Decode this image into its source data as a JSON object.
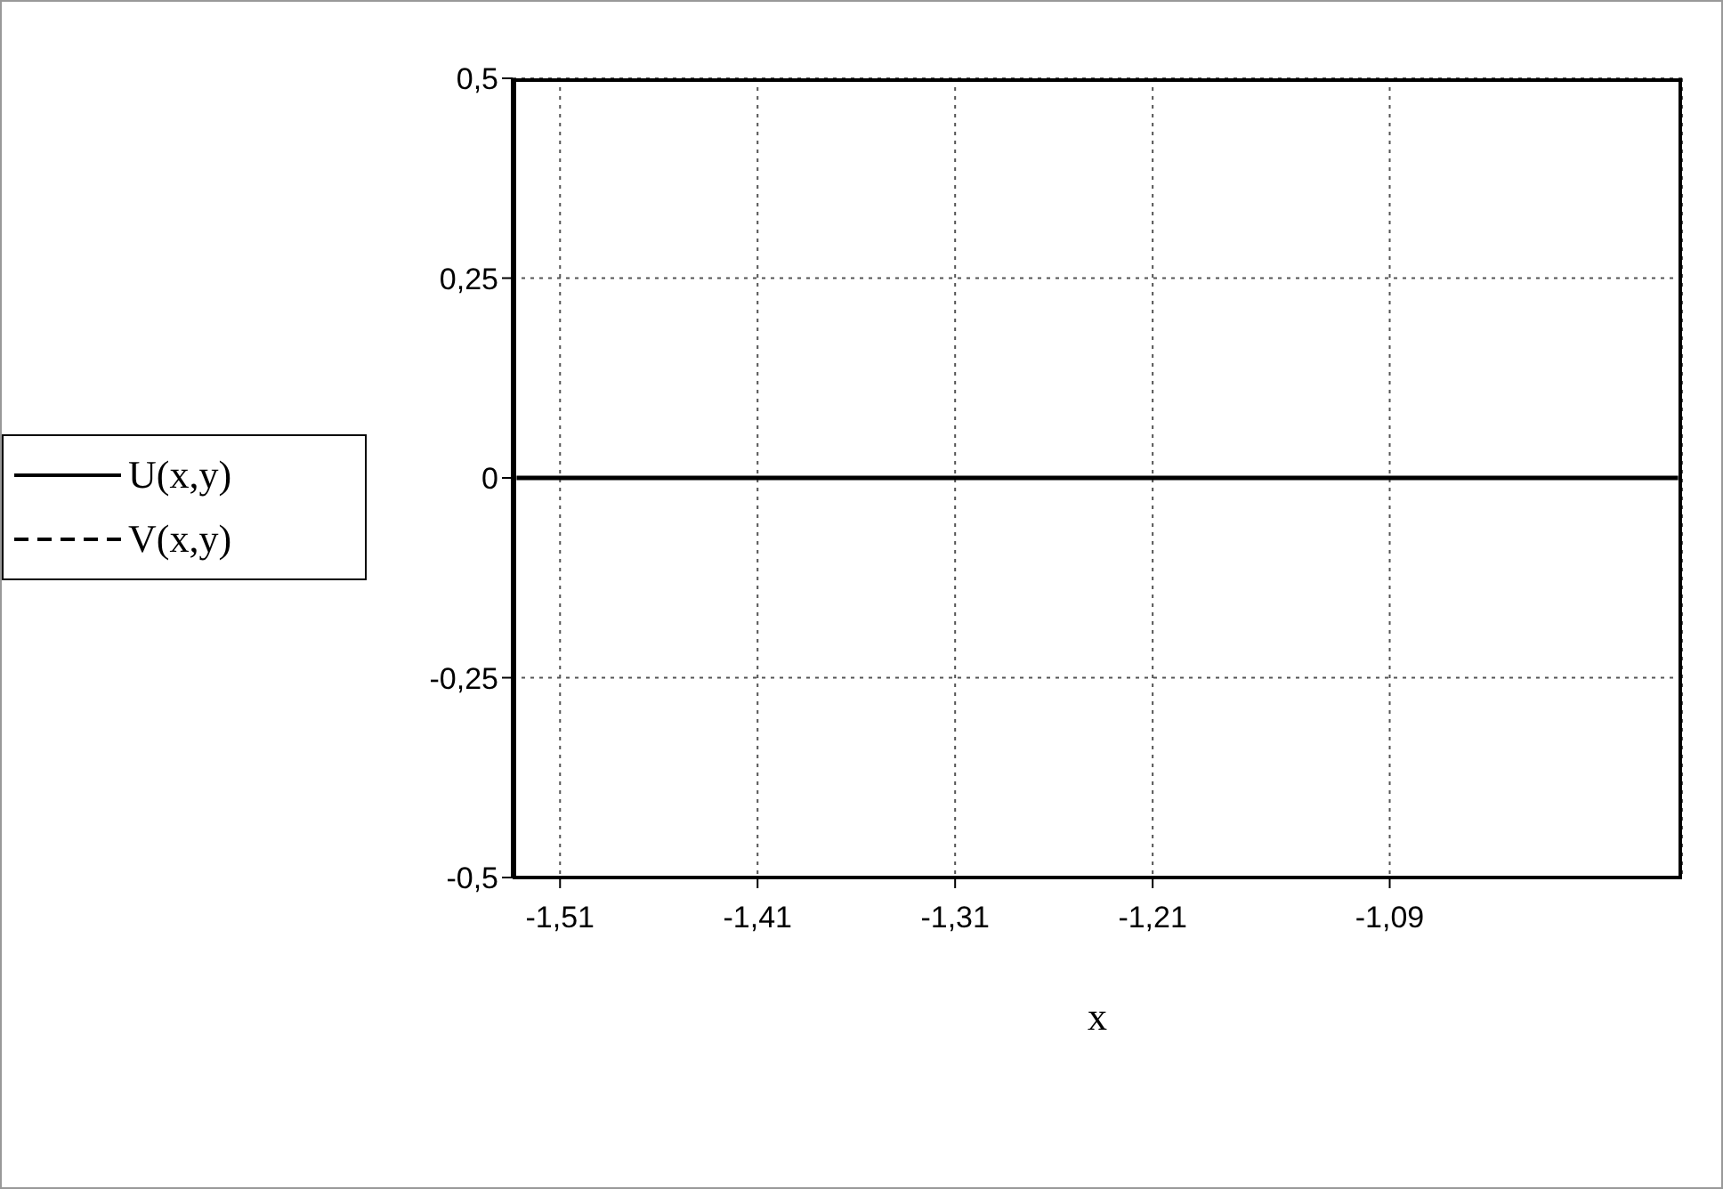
{
  "chart_data": {
    "type": "line",
    "xlabel": "x",
    "xlim": [
      -1.534,
      -0.942
    ],
    "xticks": [
      {
        "value": -1.51,
        "label": "-1,51"
      },
      {
        "value": -1.41,
        "label": "-1,41"
      },
      {
        "value": -1.31,
        "label": "-1,31"
      },
      {
        "value": -1.21,
        "label": "-1,21"
      },
      {
        "value": -1.09,
        "label": "-1,09"
      }
    ],
    "ylim": [
      -0.5,
      0.5
    ],
    "yticks": [
      {
        "value": -0.5,
        "label": "-0,5"
      },
      {
        "value": -0.25,
        "label": "-0,25"
      },
      {
        "value": 0,
        "label": "0"
      },
      {
        "value": 0.25,
        "label": "0,25"
      },
      {
        "value": 0.5,
        "label": "0,5"
      }
    ],
    "x": [
      -1.532,
      -0.944
    ],
    "series": [
      {
        "name": "U(x,y)",
        "color": "#000000",
        "line_style": "solid",
        "values": [
          0,
          0
        ]
      },
      {
        "name": "V(x,y)",
        "color": "#000000",
        "line_style": "dashed",
        "values": [
          null,
          null
        ]
      }
    ],
    "grid": true,
    "legend": "left",
    "marker": "none"
  }
}
